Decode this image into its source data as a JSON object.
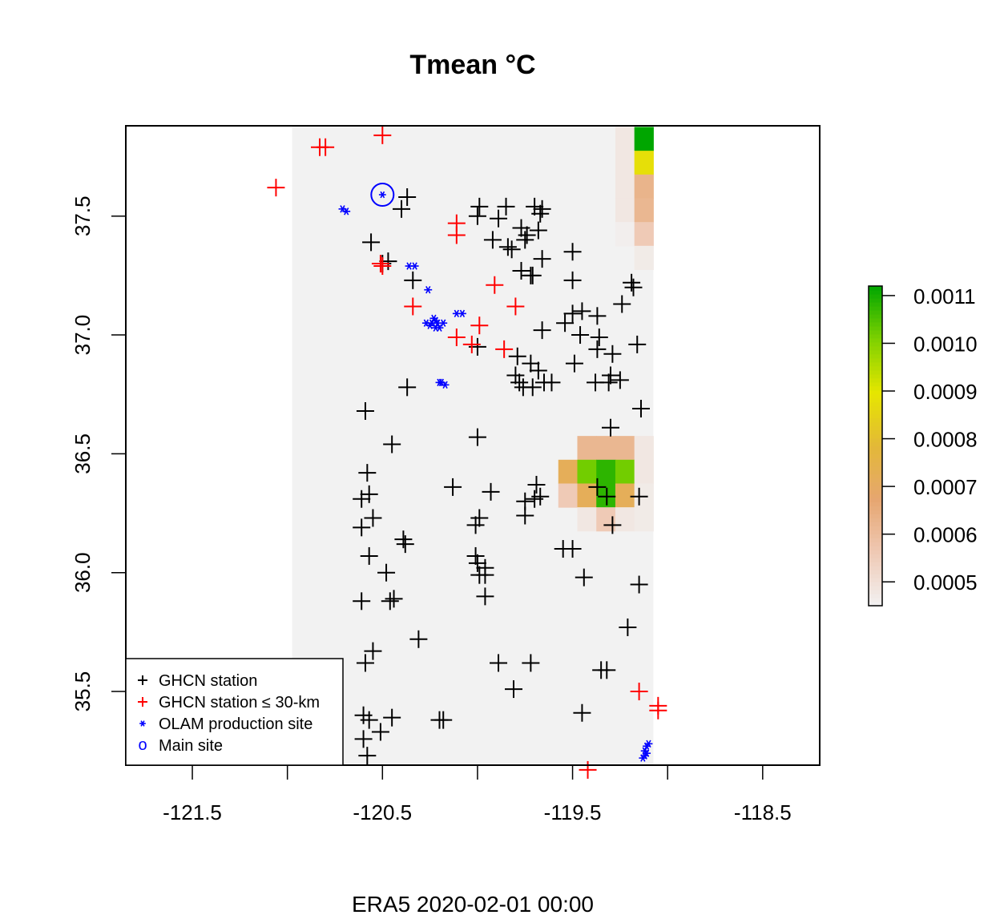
{
  "chart_data": {
    "type": "heatmap",
    "title": "Tmean °C",
    "caption": "ERA5 2020-02-01 00:00",
    "xlim": [
      -121.85,
      -118.2
    ],
    "ylim": [
      35.19,
      37.88
    ],
    "x_ticks": [
      -121.5,
      -121.0,
      -120.5,
      -120.0,
      -119.5,
      -119.0,
      -118.5
    ],
    "x_tick_labels": [
      "-121.5",
      "-120.5",
      "-119.5",
      "-118.5"
    ],
    "x_tick_label_values": [
      -121.5,
      -120.5,
      -119.5,
      -118.5
    ],
    "y_ticks": [
      35.5,
      36.0,
      36.5,
      37.0,
      37.5
    ],
    "y_tick_labels": [
      "35.5",
      "36.0",
      "36.5",
      "37.0",
      "37.5"
    ],
    "raster": {
      "lon_range": [
        -120.975,
        -119.075
      ],
      "lat_range": [
        35.19,
        37.88
      ],
      "background_value": 0.00045,
      "cell_size": 0.1,
      "cells": [
        {
          "lon": -119.225,
          "lat": 37.825,
          "value": 0.00048
        },
        {
          "lon": -119.125,
          "lat": 37.825,
          "value": 0.00112
        },
        {
          "lon": -119.225,
          "lat": 37.725,
          "value": 0.00048
        },
        {
          "lon": -119.125,
          "lat": 37.725,
          "value": 0.00088
        },
        {
          "lon": -119.225,
          "lat": 37.625,
          "value": 0.00048
        },
        {
          "lon": -119.125,
          "lat": 37.625,
          "value": 0.00063
        },
        {
          "lon": -119.225,
          "lat": 37.525,
          "value": 0.00048
        },
        {
          "lon": -119.125,
          "lat": 37.525,
          "value": 0.00062
        },
        {
          "lon": -119.225,
          "lat": 37.425,
          "value": 0.00046
        },
        {
          "lon": -119.125,
          "lat": 37.425,
          "value": 0.00056
        },
        {
          "lon": -119.125,
          "lat": 37.325,
          "value": 0.00047
        },
        {
          "lon": -119.425,
          "lat": 36.525,
          "value": 0.00062
        },
        {
          "lon": -119.325,
          "lat": 36.525,
          "value": 0.00062
        },
        {
          "lon": -119.225,
          "lat": 36.525,
          "value": 0.00062
        },
        {
          "lon": -119.125,
          "lat": 36.525,
          "value": 0.00048
        },
        {
          "lon": -119.525,
          "lat": 36.425,
          "value": 0.00072
        },
        {
          "lon": -119.425,
          "lat": 36.425,
          "value": 0.00102
        },
        {
          "lon": -119.325,
          "lat": 36.425,
          "value": 0.00108
        },
        {
          "lon": -119.225,
          "lat": 36.425,
          "value": 0.00102
        },
        {
          "lon": -119.125,
          "lat": 36.425,
          "value": 0.00048
        },
        {
          "lon": -119.525,
          "lat": 36.325,
          "value": 0.00056
        },
        {
          "lon": -119.425,
          "lat": 36.325,
          "value": 0.00072
        },
        {
          "lon": -119.325,
          "lat": 36.325,
          "value": 0.00108
        },
        {
          "lon": -119.225,
          "lat": 36.325,
          "value": 0.00072
        },
        {
          "lon": -119.125,
          "lat": 36.325,
          "value": 0.00047
        },
        {
          "lon": -119.425,
          "lat": 36.225,
          "value": 0.00048
        },
        {
          "lon": -119.325,
          "lat": 36.225,
          "value": 0.00056
        },
        {
          "lon": -119.225,
          "lat": 36.225,
          "value": 0.00048
        },
        {
          "lon": -119.125,
          "lat": 36.225,
          "value": 0.00047
        }
      ]
    },
    "colorbar": {
      "range": [
        0.00045,
        0.00112
      ],
      "tick_values": [
        0.0005,
        0.0006,
        0.0007,
        0.0008,
        0.0009,
        0.001,
        0.0011
      ],
      "tick_labels": [
        "0.0005",
        "0.0006",
        "0.0007",
        "0.0008",
        "0.0009",
        "0.0010",
        "0.0011"
      ],
      "colors": [
        "#f2f2f2",
        "#efc9b5",
        "#e6a670",
        "#e3b838",
        "#e6e600",
        "#7fd100",
        "#00a600"
      ]
    },
    "series": [
      {
        "name": "GHCN station",
        "color": "#000000",
        "marker": "+",
        "points": [
          [
            -120.37,
            37.58
          ],
          [
            -120.4,
            37.53
          ],
          [
            -119.99,
            37.54
          ],
          [
            -120.0,
            37.5
          ],
          [
            -119.85,
            37.54
          ],
          [
            -119.7,
            37.54
          ],
          [
            -119.66,
            37.53
          ],
          [
            -119.67,
            37.51
          ],
          [
            -119.89,
            37.49
          ],
          [
            -119.77,
            37.45
          ],
          [
            -119.74,
            37.42
          ],
          [
            -119.68,
            37.44
          ],
          [
            -119.92,
            37.4
          ],
          [
            -119.75,
            37.4
          ],
          [
            -119.84,
            37.37
          ],
          [
            -119.82,
            37.36
          ],
          [
            -119.66,
            37.32
          ],
          [
            -119.5,
            37.35
          ],
          [
            -120.56,
            37.39
          ],
          [
            -120.5,
            37.3
          ],
          [
            -120.47,
            37.31
          ],
          [
            -119.77,
            37.27
          ],
          [
            -119.71,
            37.25
          ],
          [
            -119.72,
            37.25
          ],
          [
            -119.5,
            37.23
          ],
          [
            -119.19,
            37.22
          ],
          [
            -119.18,
            37.2
          ],
          [
            -119.24,
            37.13
          ],
          [
            -120.34,
            37.23
          ],
          [
            -119.5,
            37.09
          ],
          [
            -119.45,
            37.1
          ],
          [
            -119.37,
            37.08
          ],
          [
            -119.54,
            37.05
          ],
          [
            -119.66,
            37.02
          ],
          [
            -119.46,
            37.0
          ],
          [
            -119.36,
            36.99
          ],
          [
            -119.37,
            36.94
          ],
          [
            -119.29,
            36.92
          ],
          [
            -119.16,
            36.96
          ],
          [
            -120.0,
            36.95
          ],
          [
            -119.79,
            36.91
          ],
          [
            -119.72,
            36.88
          ],
          [
            -119.68,
            36.85
          ],
          [
            -119.49,
            36.88
          ],
          [
            -119.3,
            36.83
          ],
          [
            -119.25,
            36.81
          ],
          [
            -119.31,
            36.8
          ],
          [
            -119.38,
            36.8
          ],
          [
            -119.8,
            36.83
          ],
          [
            -119.78,
            36.8
          ],
          [
            -119.71,
            36.78
          ],
          [
            -119.76,
            36.78
          ],
          [
            -119.65,
            36.8
          ],
          [
            -119.61,
            36.8
          ],
          [
            -120.37,
            36.78
          ],
          [
            -120.59,
            36.68
          ],
          [
            -119.14,
            36.69
          ],
          [
            -119.3,
            36.61
          ],
          [
            -120.45,
            36.54
          ],
          [
            -120.0,
            36.57
          ],
          [
            -120.58,
            36.42
          ],
          [
            -120.57,
            36.33
          ],
          [
            -120.61,
            36.31
          ],
          [
            -120.55,
            36.23
          ],
          [
            -120.61,
            36.19
          ],
          [
            -120.13,
            36.36
          ],
          [
            -119.93,
            36.34
          ],
          [
            -119.75,
            36.3
          ],
          [
            -119.67,
            36.32
          ],
          [
            -119.69,
            36.37
          ],
          [
            -119.75,
            36.24
          ],
          [
            -119.7,
            36.31
          ],
          [
            -119.37,
            36.36
          ],
          [
            -119.32,
            36.32
          ],
          [
            -119.15,
            36.32
          ],
          [
            -119.29,
            36.2
          ],
          [
            -119.99,
            36.23
          ],
          [
            -120.01,
            36.2
          ],
          [
            -120.39,
            36.14
          ],
          [
            -120.38,
            36.12
          ],
          [
            -119.55,
            36.1
          ],
          [
            -119.5,
            36.1
          ],
          [
            -120.57,
            36.07
          ],
          [
            -120.01,
            36.07
          ],
          [
            -120.0,
            36.04
          ],
          [
            -119.96,
            36.02
          ],
          [
            -119.99,
            35.99
          ],
          [
            -119.96,
            35.99
          ],
          [
            -120.48,
            36.0
          ],
          [
            -119.44,
            35.98
          ],
          [
            -119.15,
            35.95
          ],
          [
            -120.44,
            35.89
          ],
          [
            -120.46,
            35.88
          ],
          [
            -120.61,
            35.88
          ],
          [
            -119.96,
            35.9
          ],
          [
            -120.31,
            35.72
          ],
          [
            -119.21,
            35.77
          ],
          [
            -120.55,
            35.67
          ],
          [
            -120.59,
            35.62
          ],
          [
            -119.89,
            35.62
          ],
          [
            -119.72,
            35.62
          ],
          [
            -119.35,
            35.59
          ],
          [
            -119.32,
            35.59
          ],
          [
            -119.81,
            35.51
          ],
          [
            -120.6,
            35.4
          ],
          [
            -120.57,
            35.38
          ],
          [
            -120.45,
            35.39
          ],
          [
            -120.51,
            35.33
          ],
          [
            -120.2,
            35.38
          ],
          [
            -120.18,
            35.38
          ],
          [
            -119.45,
            35.41
          ],
          [
            -120.6,
            35.3
          ],
          [
            -120.58,
            35.23
          ]
        ]
      },
      {
        "name": "GHCN station ≤ 30-km",
        "color": "#ff0000",
        "marker": "+",
        "points": [
          [
            -121.06,
            37.62
          ],
          [
            -120.83,
            37.79
          ],
          [
            -120.8,
            37.79
          ],
          [
            -120.5,
            37.84
          ],
          [
            -120.11,
            37.47
          ],
          [
            -120.11,
            37.42
          ],
          [
            -120.5,
            37.29
          ],
          [
            -120.51,
            37.3
          ],
          [
            -119.91,
            37.21
          ],
          [
            -119.8,
            37.12
          ],
          [
            -120.34,
            37.12
          ],
          [
            -120.11,
            36.99
          ],
          [
            -120.03,
            36.96
          ],
          [
            -119.99,
            37.04
          ],
          [
            -119.86,
            36.94
          ],
          [
            -119.15,
            35.5
          ],
          [
            -119.05,
            35.44
          ],
          [
            -119.05,
            35.42
          ],
          [
            -119.42,
            35.17
          ]
        ]
      },
      {
        "name": "OLAM production site",
        "color": "#0000ff",
        "marker": "*",
        "points": [
          [
            -120.71,
            37.53
          ],
          [
            -120.69,
            37.52
          ],
          [
            -120.36,
            37.29
          ],
          [
            -120.33,
            37.29
          ],
          [
            -120.26,
            37.19
          ],
          [
            -120.22,
            37.06
          ],
          [
            -120.24,
            37.05
          ],
          [
            -120.27,
            37.05
          ],
          [
            -120.25,
            37.04
          ],
          [
            -120.21,
            37.05
          ],
          [
            -120.22,
            37.03
          ],
          [
            -120.23,
            37.07
          ],
          [
            -120.2,
            37.03
          ],
          [
            -120.18,
            37.05
          ],
          [
            -120.11,
            37.09
          ],
          [
            -120.08,
            37.09
          ],
          [
            -120.2,
            36.8
          ],
          [
            -120.19,
            36.8
          ],
          [
            -120.17,
            36.79
          ],
          [
            -119.11,
            35.27
          ],
          [
            -119.12,
            35.25
          ],
          [
            -119.11,
            35.24
          ],
          [
            -119.12,
            35.23
          ],
          [
            -119.13,
            35.22
          ],
          [
            -119.1,
            35.28
          ]
        ]
      },
      {
        "name": "Main site",
        "color": "#0000ff",
        "marker": "o",
        "points": [
          [
            -120.5,
            37.59
          ]
        ]
      }
    ],
    "legend_position": "bottom-left",
    "grid": false
  }
}
